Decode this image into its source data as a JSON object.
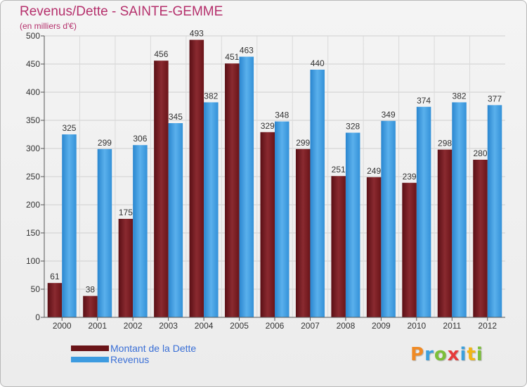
{
  "title": "Revenus/Dette - SAINTE-GEMME",
  "subtitle": "(en milliers d'€)",
  "colors": {
    "background": "#ececec",
    "title": "#b5306c",
    "legend_text": "#3a6fd6",
    "dette": "#7a1c22",
    "revenus": "#3d9be0"
  },
  "logo": {
    "text": "Proxiti",
    "letter_colors": [
      "#f08a24",
      "#3ca0dc",
      "#7cbf3a",
      "#e63b3b",
      "#3ca0dc",
      "#f2b515",
      "#7cbf3a"
    ]
  },
  "chart_data": {
    "type": "bar",
    "categories": [
      "2000",
      "2001",
      "2002",
      "2003",
      "2004",
      "2005",
      "2006",
      "2007",
      "2008",
      "2009",
      "2010",
      "2011",
      "2012"
    ],
    "series": [
      {
        "name": "Montant de la Dette",
        "color": "#7a1c22",
        "values": [
          61,
          38,
          175,
          456,
          493,
          451,
          329,
          299,
          251,
          249,
          239,
          298,
          280
        ]
      },
      {
        "name": "Revenus",
        "color": "#3d9be0",
        "values": [
          325,
          299,
          306,
          345,
          382,
          463,
          348,
          440,
          328,
          349,
          374,
          382,
          377
        ]
      }
    ],
    "ylim": [
      0,
      500
    ],
    "yticks": [
      0,
      50,
      100,
      150,
      200,
      250,
      300,
      350,
      400,
      450,
      500
    ],
    "grid": true,
    "legend": "bottom-left"
  }
}
